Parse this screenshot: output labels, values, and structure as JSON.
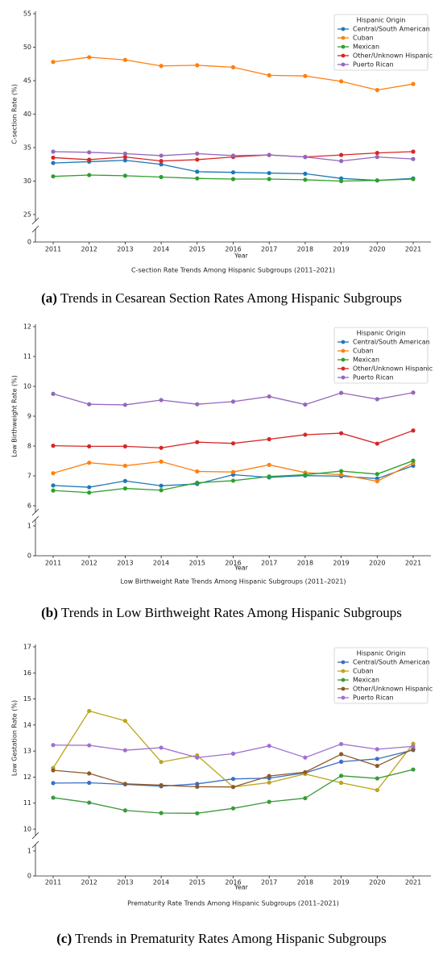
{
  "chart_data": [
    {
      "type": "line",
      "figure_label": "(a)",
      "caption": "Trends in Cesarean Section Rates Among Hispanic Subgroups",
      "title": "C-section Rate Trends Among Hispanic Subgroups (2011–2021)",
      "xlabel": "Year",
      "ylabel": "C-section Rate (%)",
      "legend_title": "Hispanic Origin",
      "legend": "upper right",
      "categories": [
        "2011",
        "2012",
        "2013",
        "2014",
        "2015",
        "2016",
        "2017",
        "2018",
        "2019",
        "2020",
        "2021"
      ],
      "ylim": [
        25,
        55
      ],
      "yticks": [
        25,
        30,
        35,
        40,
        45,
        50,
        55
      ],
      "lower_ylim": [
        0,
        1
      ],
      "lower_yticks": [
        0
      ],
      "series": [
        {
          "name": "Central/South American",
          "color": "#1f77b4",
          "values": [
            32.7,
            32.9,
            33.1,
            32.5,
            31.4,
            31.3,
            31.2,
            31.1,
            30.4,
            30.1,
            30.4
          ]
        },
        {
          "name": "Cuban",
          "color": "#ff7f0e",
          "values": [
            47.8,
            48.5,
            48.1,
            47.2,
            47.3,
            47.0,
            45.8,
            45.7,
            44.9,
            43.6,
            44.5
          ]
        },
        {
          "name": "Mexican",
          "color": "#2ca02c",
          "values": [
            30.7,
            30.9,
            30.8,
            30.6,
            30.4,
            30.3,
            30.3,
            30.2,
            30.0,
            30.1,
            30.3
          ]
        },
        {
          "name": "Other/Unknown Hispanic",
          "color": "#d62728",
          "values": [
            33.5,
            33.2,
            33.6,
            33.0,
            33.2,
            33.6,
            33.9,
            33.6,
            33.9,
            34.2,
            34.4
          ]
        },
        {
          "name": "Puerto Rican",
          "color": "#9467bd",
          "values": [
            34.4,
            34.3,
            34.1,
            33.8,
            34.1,
            33.8,
            33.9,
            33.6,
            33.0,
            33.6,
            33.3
          ]
        }
      ]
    },
    {
      "type": "line",
      "figure_label": "(b)",
      "caption": "Trends in Low Birthweight Rates Among Hispanic Subgroups",
      "title": "Low Birthweight Rate Trends Among Hispanic Subgroups (2011–2021)",
      "xlabel": "Year",
      "ylabel": "Low Birthweight Rate (%)",
      "legend_title": "Hispanic Origin",
      "legend": "upper right",
      "categories": [
        "2011",
        "2012",
        "2013",
        "2014",
        "2015",
        "2016",
        "2017",
        "2018",
        "2019",
        "2020",
        "2021"
      ],
      "ylim": [
        6,
        12
      ],
      "yticks": [
        6,
        7,
        8,
        9,
        10,
        11,
        12
      ],
      "lower_ylim": [
        0,
        1
      ],
      "lower_yticks": [
        0,
        1
      ],
      "series": [
        {
          "name": "Central/South American",
          "color": "#1f77b4",
          "values": [
            6.68,
            6.62,
            6.83,
            6.67,
            6.73,
            7.04,
            6.95,
            7.01,
            6.99,
            6.91,
            7.34
          ]
        },
        {
          "name": "Cuban",
          "color": "#ff7f0e",
          "values": [
            7.09,
            7.44,
            7.34,
            7.48,
            7.15,
            7.13,
            7.37,
            7.11,
            7.04,
            6.82,
            7.43
          ]
        },
        {
          "name": "Mexican",
          "color": "#2ca02c",
          "values": [
            6.51,
            6.44,
            6.58,
            6.52,
            6.77,
            6.84,
            6.98,
            7.04,
            7.16,
            7.06,
            7.51
          ]
        },
        {
          "name": "Other/Unknown Hispanic",
          "color": "#d62728",
          "values": [
            8.01,
            7.99,
            7.99,
            7.94,
            8.13,
            8.09,
            8.23,
            8.38,
            8.43,
            8.08,
            8.52
          ]
        },
        {
          "name": "Puerto Rican",
          "color": "#9467bd",
          "values": [
            9.75,
            9.4,
            9.38,
            9.54,
            9.4,
            9.49,
            9.66,
            9.39,
            9.78,
            9.57,
            9.79
          ]
        }
      ]
    },
    {
      "type": "line",
      "figure_label": "(c)",
      "caption": "Trends in Prematurity Rates Among Hispanic Subgroups",
      "title": "Prematurity Rate Trends Among Hispanic Subgroups (2011–2021)",
      "xlabel": "Year",
      "ylabel": "Low Gestation Rate (%)",
      "legend_title": "Hispanic Origin",
      "legend": "upper right",
      "categories": [
        "2011",
        "2012",
        "2013",
        "2014",
        "2015",
        "2016",
        "2017",
        "2018",
        "2019",
        "2020",
        "2021"
      ],
      "ylim": [
        10,
        17
      ],
      "yticks": [
        10,
        11,
        12,
        13,
        14,
        15,
        16,
        17
      ],
      "lower_ylim": [
        0,
        1
      ],
      "lower_yticks": [
        0,
        1
      ],
      "series": [
        {
          "name": "Central/South American",
          "color": "#3b6fc4",
          "values": [
            11.77,
            11.78,
            11.72,
            11.65,
            11.74,
            11.93,
            11.96,
            12.16,
            12.59,
            12.7,
            13.04
          ]
        },
        {
          "name": "Cuban",
          "color": "#bba51c",
          "values": [
            12.35,
            14.54,
            14.16,
            12.58,
            12.83,
            11.62,
            11.79,
            12.12,
            11.78,
            11.5,
            13.28
          ]
        },
        {
          "name": "Mexican",
          "color": "#3a9a3a",
          "values": [
            11.21,
            11.02,
            10.72,
            10.62,
            10.61,
            10.8,
            11.05,
            11.19,
            12.05,
            11.95,
            12.29
          ]
        },
        {
          "name": "Other/Unknown Hispanic",
          "color": "#8b5a2b",
          "values": [
            12.26,
            12.14,
            11.74,
            11.69,
            11.63,
            11.62,
            12.04,
            12.19,
            12.88,
            12.43,
            13.08
          ]
        },
        {
          "name": "Puerto Rican",
          "color": "#a070d0",
          "values": [
            13.23,
            13.22,
            13.03,
            13.13,
            12.75,
            12.9,
            13.2,
            12.75,
            13.27,
            13.07,
            13.18
          ]
        }
      ]
    }
  ]
}
